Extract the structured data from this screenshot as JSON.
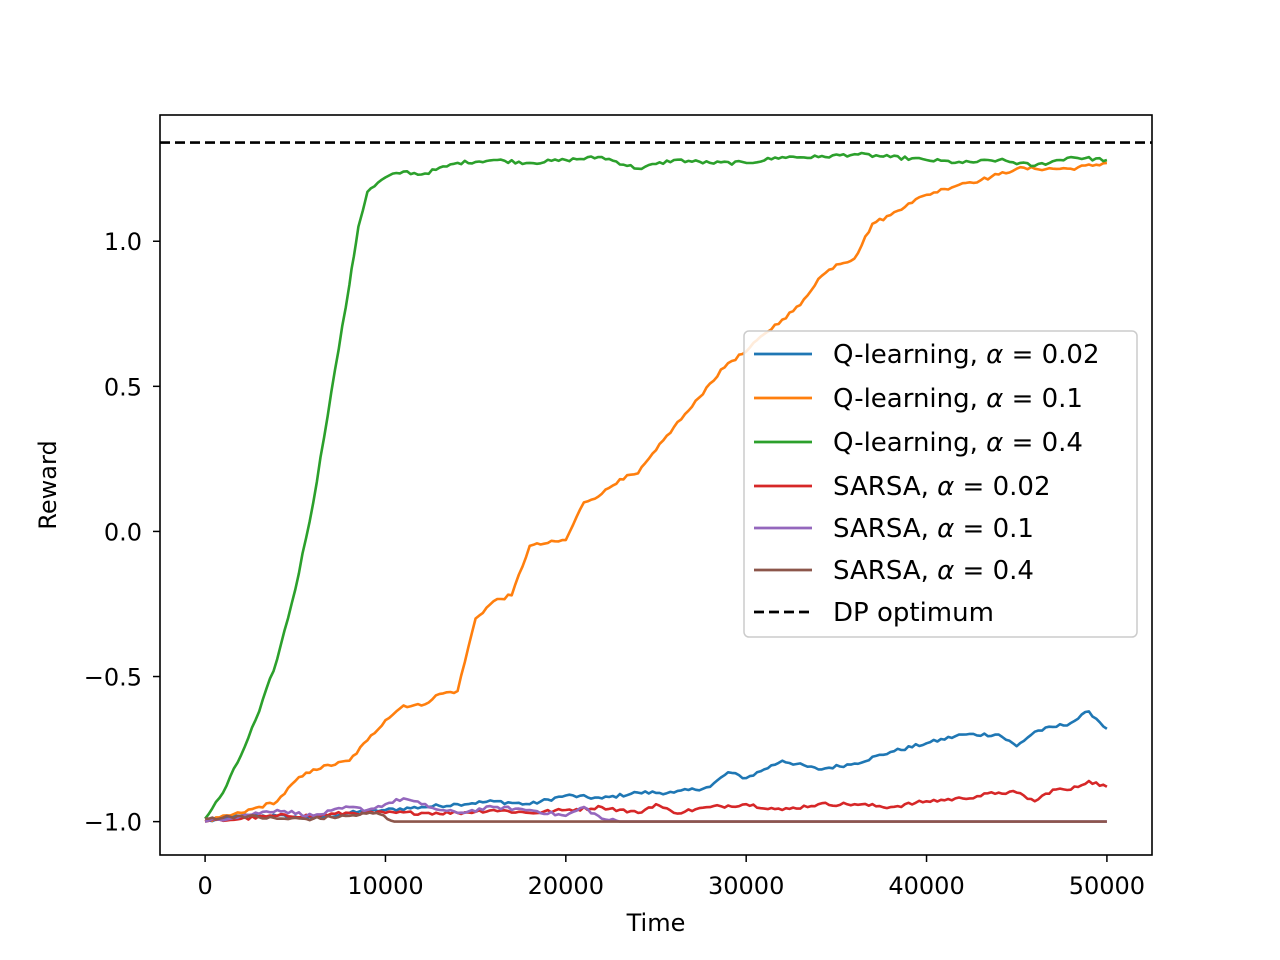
{
  "chart_data": {
    "type": "line",
    "title": "",
    "xlabel": "Time",
    "ylabel": "Reward",
    "xlim": [
      -2500,
      52500
    ],
    "ylim": [
      -1.115,
      1.435
    ],
    "xticks": [
      0,
      10000,
      20000,
      30000,
      40000,
      50000
    ],
    "xtick_labels": [
      "0",
      "10000",
      "20000",
      "30000",
      "40000",
      "50000"
    ],
    "yticks": [
      -1.0,
      -0.5,
      0.0,
      0.5,
      1.0
    ],
    "ytick_labels": [
      "−1.0",
      "−0.5",
      "0.0",
      "0.5",
      "1.0"
    ],
    "grid": false,
    "legend_position": "center-right",
    "reference_line": {
      "name": "DP optimum",
      "y": 1.34,
      "style": "dashed",
      "color": "#000000"
    },
    "series": [
      {
        "name": "Q-learning, α = 0.02",
        "label_prefix": "Q-learning, ",
        "label_suffix": " = 0.02",
        "color": "#1f77b4",
        "x": [
          0,
          2000,
          4000,
          6000,
          8000,
          10000,
          12000,
          14000,
          16000,
          18000,
          20000,
          22000,
          24000,
          26000,
          28000,
          29000,
          30000,
          31000,
          32000,
          34000,
          36000,
          38000,
          40000,
          42000,
          44000,
          45000,
          46000,
          48000,
          49000,
          50000
        ],
        "y": [
          -1.0,
          -0.98,
          -0.98,
          -0.99,
          -0.97,
          -0.96,
          -0.95,
          -0.94,
          -0.93,
          -0.94,
          -0.91,
          -0.92,
          -0.9,
          -0.9,
          -0.88,
          -0.83,
          -0.85,
          -0.82,
          -0.79,
          -0.82,
          -0.8,
          -0.76,
          -0.73,
          -0.7,
          -0.7,
          -0.74,
          -0.69,
          -0.66,
          -0.62,
          -0.68
        ]
      },
      {
        "name": "Q-learning, α = 0.1",
        "label_prefix": "Q-learning, ",
        "label_suffix": " = 0.1",
        "color": "#ff7f0e",
        "x": [
          0,
          2000,
          4000,
          5000,
          6000,
          8000,
          9000,
          10000,
          11000,
          12000,
          13000,
          14000,
          15000,
          16000,
          17000,
          18000,
          19000,
          20000,
          21000,
          22000,
          23000,
          24000,
          25000,
          26000,
          27000,
          28000,
          29000,
          30000,
          31000,
          32000,
          33000,
          34000,
          35000,
          36000,
          37000,
          38000,
          39000,
          40000,
          41000,
          42000,
          43000,
          44000,
          45000,
          46000,
          48000,
          50000
        ],
        "y": [
          -1.0,
          -0.97,
          -0.93,
          -0.86,
          -0.82,
          -0.79,
          -0.72,
          -0.65,
          -0.6,
          -0.6,
          -0.56,
          -0.55,
          -0.3,
          -0.24,
          -0.22,
          -0.05,
          -0.04,
          -0.03,
          0.1,
          0.13,
          0.18,
          0.2,
          0.28,
          0.36,
          0.43,
          0.51,
          0.58,
          0.62,
          0.68,
          0.73,
          0.78,
          0.87,
          0.92,
          0.94,
          1.06,
          1.09,
          1.13,
          1.16,
          1.18,
          1.2,
          1.21,
          1.23,
          1.25,
          1.25,
          1.25,
          1.27
        ]
      },
      {
        "name": "Q-learning, α = 0.4",
        "label_prefix": "Q-learning, ",
        "label_suffix": " = 0.4",
        "color": "#2ca02c",
        "x": [
          0,
          1000,
          2000,
          3000,
          4000,
          5000,
          6000,
          7000,
          8000,
          8500,
          9000,
          10000,
          11000,
          12000,
          14000,
          16000,
          18000,
          20000,
          22000,
          24000,
          26000,
          28000,
          30000,
          32000,
          34000,
          36000,
          38000,
          40000,
          42000,
          44000,
          46000,
          48000,
          50000
        ],
        "y": [
          -0.99,
          -0.9,
          -0.77,
          -0.62,
          -0.44,
          -0.2,
          0.1,
          0.48,
          0.85,
          1.05,
          1.17,
          1.22,
          1.24,
          1.23,
          1.27,
          1.28,
          1.27,
          1.28,
          1.29,
          1.25,
          1.28,
          1.27,
          1.27,
          1.29,
          1.29,
          1.3,
          1.29,
          1.28,
          1.27,
          1.28,
          1.26,
          1.29,
          1.28
        ]
      },
      {
        "name": "SARSA, α = 0.02",
        "label_prefix": "SARSA, ",
        "label_suffix": " = 0.02",
        "color": "#d62728",
        "x": [
          0,
          2000,
          4000,
          6000,
          8000,
          10000,
          12000,
          14000,
          16000,
          18000,
          20000,
          22000,
          24000,
          25000,
          26000,
          28000,
          30000,
          32000,
          34000,
          36000,
          38000,
          40000,
          42000,
          44000,
          45000,
          46000,
          47000,
          48000,
          49000,
          50000
        ],
        "y": [
          -1.0,
          -0.99,
          -0.98,
          -0.98,
          -0.97,
          -0.97,
          -0.97,
          -0.97,
          -0.96,
          -0.97,
          -0.96,
          -0.95,
          -0.97,
          -0.94,
          -0.97,
          -0.95,
          -0.94,
          -0.96,
          -0.94,
          -0.94,
          -0.95,
          -0.93,
          -0.92,
          -0.9,
          -0.9,
          -0.93,
          -0.89,
          -0.89,
          -0.86,
          -0.88
        ]
      },
      {
        "name": "SARSA, α = 0.1",
        "label_prefix": "SARSA, ",
        "label_suffix": " = 0.1",
        "color": "#9467bd",
        "x": [
          0,
          2000,
          4000,
          6000,
          8000,
          9000,
          10000,
          11000,
          12000,
          13000,
          14000,
          16000,
          18000,
          20000,
          21000,
          22000,
          23000,
          24000,
          26000,
          30000,
          36000,
          50000
        ],
        "y": [
          -1.0,
          -0.98,
          -0.96,
          -0.98,
          -0.95,
          -0.96,
          -0.94,
          -0.92,
          -0.94,
          -0.96,
          -0.97,
          -0.95,
          -0.96,
          -0.98,
          -0.95,
          -0.99,
          -1.0,
          -1.0,
          -1.0,
          -1.0,
          -1.0,
          -1.0
        ]
      },
      {
        "name": "SARSA, α = 0.4",
        "label_prefix": "SARSA, ",
        "label_suffix": " = 0.4",
        "color": "#8c564b",
        "x": [
          0,
          2000,
          4000,
          6000,
          8000,
          9500,
          10500,
          12000,
          20000,
          30000,
          40000,
          50000
        ],
        "y": [
          -0.99,
          -0.98,
          -0.99,
          -0.99,
          -0.98,
          -0.97,
          -1.0,
          -1.0,
          -1.0,
          -1.0,
          -1.0,
          -1.0
        ]
      }
    ],
    "alpha_symbol": "α"
  }
}
